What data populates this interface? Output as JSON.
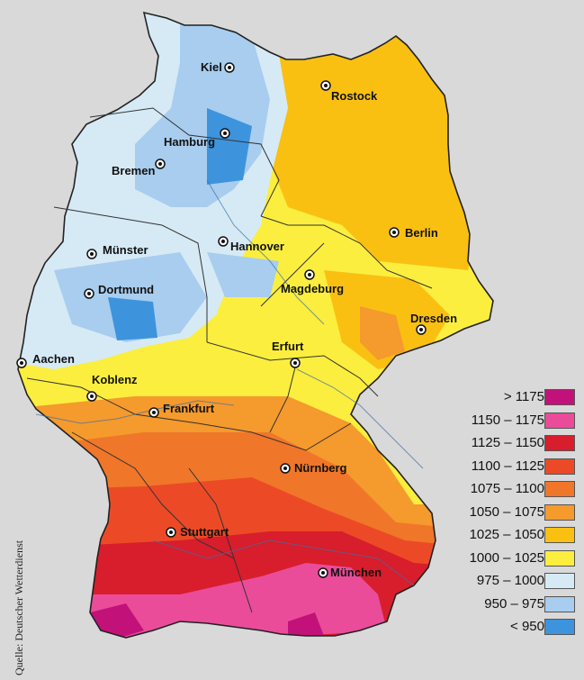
{
  "map": {
    "source": "Quelle: Deutscher Wetterdienst",
    "cities": [
      {
        "name": "Kiel",
        "icon": "city-dot-icon"
      },
      {
        "name": "Rostock",
        "icon": "city-dot-icon"
      },
      {
        "name": "Hamburg",
        "icon": "city-dot-icon"
      },
      {
        "name": "Bremen",
        "icon": "city-dot-icon"
      },
      {
        "name": "Berlin",
        "icon": "city-dot-icon"
      },
      {
        "name": "Münster",
        "icon": "city-dot-icon"
      },
      {
        "name": "Hannover",
        "icon": "city-dot-icon"
      },
      {
        "name": "Magdeburg",
        "icon": "city-dot-icon"
      },
      {
        "name": "Dortmund",
        "icon": "city-dot-icon"
      },
      {
        "name": "Dresden",
        "icon": "city-dot-icon"
      },
      {
        "name": "Aachen",
        "icon": "city-dot-icon"
      },
      {
        "name": "Erfurt",
        "icon": "city-dot-icon"
      },
      {
        "name": "Koblenz",
        "icon": "city-dot-icon"
      },
      {
        "name": "Frankfurt",
        "icon": "city-dot-icon"
      },
      {
        "name": "Nürnberg",
        "icon": "city-dot-icon"
      },
      {
        "name": "Stuttgart",
        "icon": "city-dot-icon"
      },
      {
        "name": "München",
        "icon": "city-dot-icon"
      }
    ],
    "legend": [
      {
        "label": "> 1175",
        "color": "#c2127a"
      },
      {
        "label": "1150 – 1175",
        "color": "#ea4c9a"
      },
      {
        "label": "1125 – 1150",
        "color": "#d81d2c"
      },
      {
        "label": "1100 – 1125",
        "color": "#ec4a26"
      },
      {
        "label": "1075 – 1100",
        "color": "#f0762a"
      },
      {
        "label": "1050 – 1075",
        "color": "#f59a2c"
      },
      {
        "label": "1025 – 1050",
        "color": "#f9c012"
      },
      {
        "label": "1000 – 1025",
        "color": "#fbee3e"
      },
      {
        "label": "975 – 1000",
        "color": "#d6eaf5"
      },
      {
        "label": "950 – 975",
        "color": "#a8cdee"
      },
      {
        "label": "< 950",
        "color": "#3d94dd"
      }
    ]
  }
}
